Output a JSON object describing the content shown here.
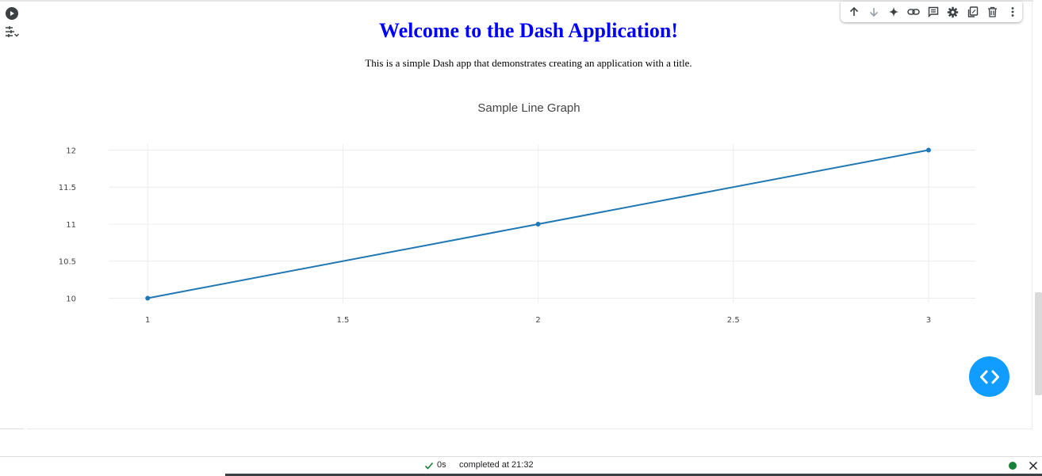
{
  "cell": {
    "run_icon": "play-circle-icon",
    "toc_icon": "table-of-contents-icon"
  },
  "toolbar": {
    "buttons": [
      {
        "name": "move-up-button",
        "icon": "arrow-up-icon"
      },
      {
        "name": "move-down-button",
        "icon": "arrow-down-icon"
      },
      {
        "name": "gemini-button",
        "icon": "sparkle-icon"
      },
      {
        "name": "link-button",
        "icon": "link-icon"
      },
      {
        "name": "comment-button",
        "icon": "comment-icon"
      },
      {
        "name": "settings-button",
        "icon": "gear-icon"
      },
      {
        "name": "mirror-cell-button",
        "icon": "mirror-tab-icon"
      },
      {
        "name": "delete-button",
        "icon": "trash-icon"
      },
      {
        "name": "more-button",
        "icon": "more-vert-icon"
      }
    ]
  },
  "app": {
    "title": "Welcome to the Dash Application!",
    "title_color": "#0000ff",
    "description": "This is a simple Dash app that demonstrates creating an application with a title."
  },
  "chart_data": {
    "type": "line",
    "title": "Sample Line Graph",
    "x": [
      1,
      2,
      3
    ],
    "series": [
      {
        "values": [
          10,
          11,
          12
        ],
        "color": "#1f77b4",
        "mode": "lines+markers"
      }
    ],
    "xlim": [
      0.9,
      3.12
    ],
    "ylim": [
      9.93,
      12.08
    ],
    "x_ticks": [
      "1",
      "1.5",
      "2",
      "2.5",
      "3"
    ],
    "y_ticks": [
      "10",
      "10.5",
      "11",
      "11.5",
      "12"
    ],
    "grid": true,
    "xlabel": "",
    "ylabel": ""
  },
  "fab": {
    "icon": "code-brackets-icon",
    "color": "#119dff"
  },
  "status": {
    "check_icon": "checkmark-icon",
    "duration": "0s",
    "completed": "completed at 21:32",
    "connection_color": "#188038",
    "close_icon": "close-icon"
  }
}
